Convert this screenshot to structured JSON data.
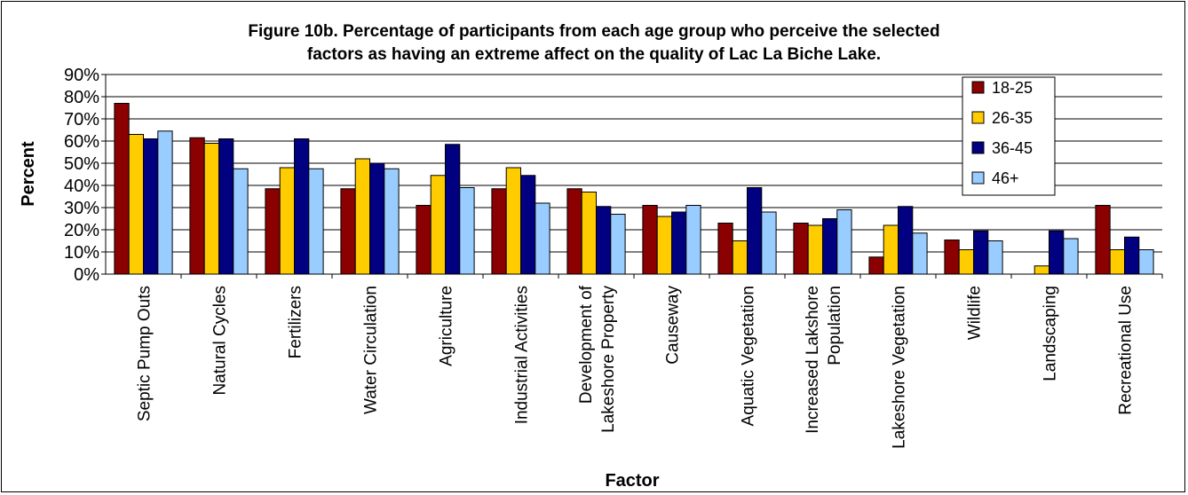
{
  "chart_data": {
    "type": "bar",
    "title_lines": [
      "Figure 10b. Percentage of participants from each age group who perceive the selected",
      "factors as having an extreme affect on the quality of Lac La Biche Lake."
    ],
    "xlabel": "Factor",
    "ylabel": "Percent",
    "ylim": [
      0,
      90
    ],
    "yticks": [
      "0%",
      "10%",
      "20%",
      "30%",
      "40%",
      "50%",
      "60%",
      "70%",
      "80%",
      "90%"
    ],
    "grid": true,
    "legend_position": "top-right",
    "categories": [
      [
        "Septic Pump Outs"
      ],
      [
        "Natural Cycles"
      ],
      [
        "Fertilizers"
      ],
      [
        "Water Circulation"
      ],
      [
        "Agriculture"
      ],
      [
        "Industrial Activities"
      ],
      [
        "Development of",
        "Lakeshore Property"
      ],
      [
        "Causeway"
      ],
      [
        "Aquatic Vegetation"
      ],
      [
        "Increased Lakshore",
        "Population"
      ],
      [
        "Lakeshore Vegetation"
      ],
      [
        "Wildlife"
      ],
      [
        "Landscaping"
      ],
      [
        "Recreational Use"
      ]
    ],
    "series": [
      {
        "name": "18-25",
        "color": "#8B0000",
        "values": [
          77,
          61.5,
          38.5,
          38.5,
          31,
          38.5,
          38.5,
          31,
          23,
          23,
          7.7,
          15.4,
          0,
          31
        ]
      },
      {
        "name": "26-35",
        "color": "#FFCC00",
        "values": [
          63,
          59,
          48,
          52,
          44.5,
          48,
          37,
          26,
          15,
          22,
          22,
          11,
          3.7,
          11
        ]
      },
      {
        "name": "36-45",
        "color": "#000080",
        "values": [
          61,
          61,
          61,
          50,
          58.5,
          44.5,
          30.5,
          28,
          39,
          25,
          30.5,
          19.5,
          19.5,
          16.7
        ]
      },
      {
        "name": "46+",
        "color": "#99CCFF",
        "values": [
          64.5,
          47.5,
          47.5,
          47.5,
          39,
          32,
          27,
          31,
          28,
          29,
          18.5,
          15,
          16,
          11
        ]
      }
    ]
  }
}
